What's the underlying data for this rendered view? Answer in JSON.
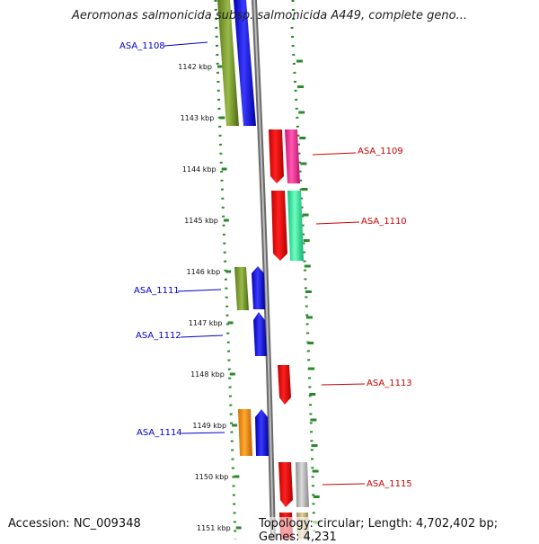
{
  "header": {
    "title": "Aeromonas salmonicida subsp. salmonicida A449, complete geno..."
  },
  "footer": {
    "accession": "Accession: NC_009348",
    "topology": "Topology: circular; Length: 4,702,402 bp; Genes: 4,231"
  },
  "colors": {
    "ruler": "#2a8a2a",
    "left_label": "#0000cc",
    "right_label": "#cc0000",
    "axis_line": "#808080"
  },
  "ruler_ticks": [
    {
      "label": "1142 kbp"
    },
    {
      "label": "1143 kbp"
    },
    {
      "label": "1144 kbp"
    },
    {
      "label": "1145 kbp"
    },
    {
      "label": "1146 kbp"
    },
    {
      "label": "1147 kbp"
    },
    {
      "label": "1148 kbp"
    },
    {
      "label": "1149 kbp"
    },
    {
      "label": "1150 kbp"
    },
    {
      "label": "1151 kbp"
    }
  ],
  "gene_labels": [
    {
      "name": "ASA_1108",
      "side": "left"
    },
    {
      "name": "ASA_1109",
      "side": "right"
    },
    {
      "name": "ASA_1110",
      "side": "right"
    },
    {
      "name": "ASA_1111",
      "side": "left"
    },
    {
      "name": "ASA_1112",
      "side": "left"
    },
    {
      "name": "ASA_1113",
      "side": "right"
    },
    {
      "name": "ASA_1114",
      "side": "left"
    },
    {
      "name": "ASA_1115",
      "side": "right"
    }
  ]
}
